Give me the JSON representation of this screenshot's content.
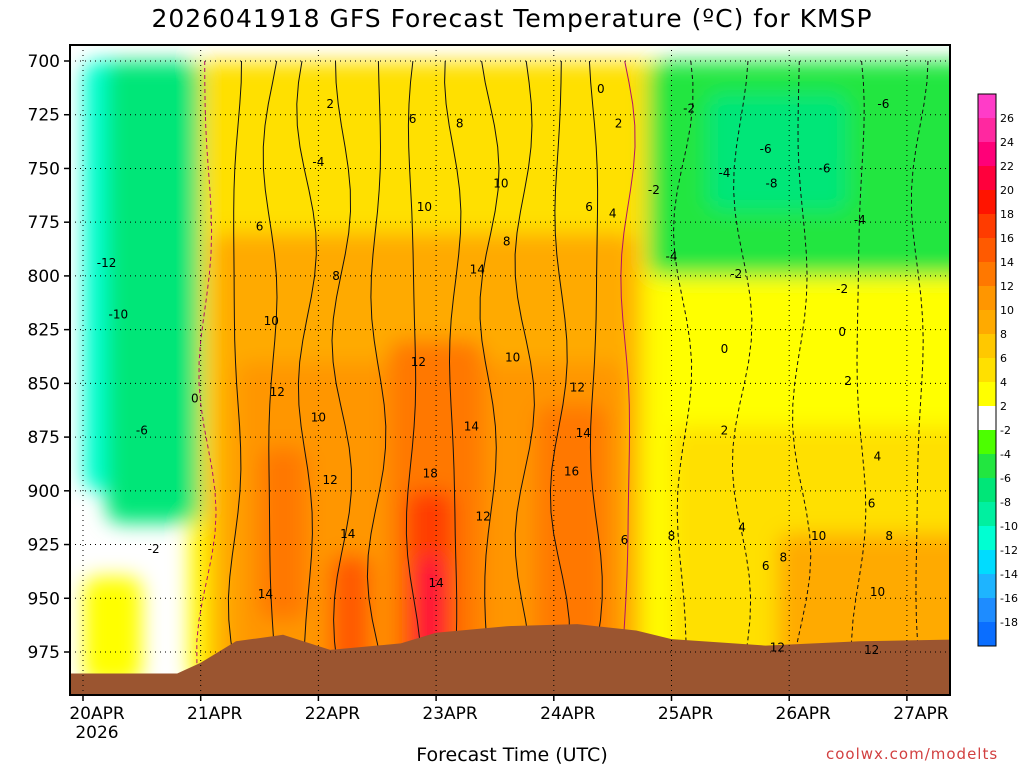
{
  "title": "2026041918 GFS Forecast Temperature (ºC) for KMSP",
  "xlabel": "Forecast Time (UTC)",
  "credit": "coolwx.com/modelts",
  "chart_data": {
    "type": "heatmap",
    "station": "KMSP",
    "model": "GFS",
    "init": "2026041918",
    "y_axis": {
      "quantity": "pressure (hPa)",
      "inverted": true,
      "range": [
        990,
        695
      ],
      "ticks": [
        700,
        725,
        750,
        775,
        800,
        825,
        850,
        875,
        900,
        925,
        950,
        975
      ]
    },
    "x_axis": {
      "ticks": [
        "20APR",
        "21APR",
        "22APR",
        "23APR",
        "24APR",
        "25APR",
        "26APR",
        "27APR"
      ],
      "first_tick_sublabel": "2026"
    },
    "grid": true,
    "colorbar": {
      "placement": "right",
      "levels": [
        -20,
        -18,
        -16,
        -14,
        -12,
        -10,
        -8,
        -6,
        -4,
        -2,
        2,
        4,
        6,
        8,
        10,
        12,
        14,
        16,
        18,
        20,
        22,
        24,
        26,
        28
      ],
      "labels": [
        26,
        24,
        22,
        20,
        18,
        16,
        14,
        12,
        10,
        8,
        6,
        4,
        2,
        -2,
        -4,
        -6,
        -8,
        -10,
        -12,
        -14,
        -16,
        -18
      ],
      "colors": [
        "#0a6eff",
        "#1e8cff",
        "#1eb4ff",
        "#00dcff",
        "#00ffd2",
        "#00f0a0",
        "#00e678",
        "#22e640",
        "#4cff00",
        "#ffffff",
        "#ffff00",
        "#ffe000",
        "#ffc800",
        "#ffaa00",
        "#ff9600",
        "#ff7800",
        "#ff5a00",
        "#ff3c00",
        "#ff1400",
        "#ff003c",
        "#ff0078",
        "#ff28a0",
        "#ff3cc8"
      ]
    },
    "ground_color": "#9b5530",
    "contour_labels": [
      {
        "text": "2",
        "t": 2.1,
        "p": 720
      },
      {
        "text": "6",
        "t": 2.8,
        "p": 727
      },
      {
        "text": "8",
        "t": 3.2,
        "p": 729
      },
      {
        "text": "0",
        "t": 4.4,
        "p": 713
      },
      {
        "text": "2",
        "t": 4.55,
        "p": 729
      },
      {
        "text": "-2",
        "t": 5.15,
        "p": 722
      },
      {
        "text": "-6",
        "t": 5.8,
        "p": 741
      },
      {
        "text": "-8",
        "t": 5.85,
        "p": 757
      },
      {
        "text": "-6",
        "t": 6.8,
        "p": 720
      },
      {
        "text": "-4",
        "t": 2.0,
        "p": 747
      },
      {
        "text": "10",
        "t": 3.55,
        "p": 757
      },
      {
        "text": "-4",
        "t": 5.45,
        "p": 752
      },
      {
        "text": "-6",
        "t": 6.3,
        "p": 750
      },
      {
        "text": "-2",
        "t": 4.85,
        "p": 760
      },
      {
        "text": "6",
        "t": 1.5,
        "p": 777
      },
      {
        "text": "10",
        "t": 2.9,
        "p": 768
      },
      {
        "text": "8",
        "t": 3.6,
        "p": 784
      },
      {
        "text": "6",
        "t": 4.3,
        "p": 768
      },
      {
        "text": "4",
        "t": 4.5,
        "p": 771
      },
      {
        "text": "-4",
        "t": 6.6,
        "p": 774
      },
      {
        "text": "-12",
        "t": 0.2,
        "p": 794
      },
      {
        "text": "8",
        "t": 2.15,
        "p": 800
      },
      {
        "text": "14",
        "t": 3.35,
        "p": 797
      },
      {
        "text": "-4",
        "t": 5.0,
        "p": 791
      },
      {
        "text": "-2",
        "t": 5.55,
        "p": 799
      },
      {
        "text": "-2",
        "t": 6.45,
        "p": 806
      },
      {
        "text": "-10",
        "t": 0.3,
        "p": 818
      },
      {
        "text": "10",
        "t": 1.6,
        "p": 821
      },
      {
        "text": "12",
        "t": 2.85,
        "p": 840
      },
      {
        "text": "10",
        "t": 3.65,
        "p": 838
      },
      {
        "text": "0",
        "t": 5.45,
        "p": 834
      },
      {
        "text": "0",
        "t": 6.45,
        "p": 826
      },
      {
        "text": "12",
        "t": 1.65,
        "p": 854
      },
      {
        "text": "0",
        "t": 0.95,
        "p": 857
      },
      {
        "text": "12",
        "t": 4.2,
        "p": 852
      },
      {
        "text": "2",
        "t": 6.5,
        "p": 849
      },
      {
        "text": "10",
        "t": 2.0,
        "p": 866
      },
      {
        "text": "14",
        "t": 3.3,
        "p": 870
      },
      {
        "text": "14",
        "t": 4.25,
        "p": 873
      },
      {
        "text": "2",
        "t": 5.45,
        "p": 872
      },
      {
        "text": "-6",
        "t": 0.5,
        "p": 872
      },
      {
        "text": "4",
        "t": 6.75,
        "p": 884
      },
      {
        "text": "18",
        "t": 2.95,
        "p": 892
      },
      {
        "text": "16",
        "t": 4.15,
        "p": 891
      },
      {
        "text": "12",
        "t": 2.1,
        "p": 895
      },
      {
        "text": "6",
        "t": 6.7,
        "p": 906
      },
      {
        "text": "12",
        "t": 3.4,
        "p": 912
      },
      {
        "text": "4",
        "t": 5.6,
        "p": 917
      },
      {
        "text": "8",
        "t": 6.85,
        "p": 921
      },
      {
        "text": "14",
        "t": 2.25,
        "p": 920
      },
      {
        "text": "6",
        "t": 4.6,
        "p": 923
      },
      {
        "text": "8",
        "t": 5.0,
        "p": 921
      },
      {
        "text": "10",
        "t": 6.25,
        "p": 921
      },
      {
        "text": "-2",
        "t": 0.6,
        "p": 927
      },
      {
        "text": "8",
        "t": 5.95,
        "p": 931
      },
      {
        "text": "6",
        "t": 5.8,
        "p": 935
      },
      {
        "text": "14",
        "t": 3.0,
        "p": 943
      },
      {
        "text": "10",
        "t": 6.75,
        "p": 947
      },
      {
        "text": "14",
        "t": 1.55,
        "p": 948
      },
      {
        "text": "12",
        "t": 5.9,
        "p": 973
      },
      {
        "text": "12",
        "t": 6.7,
        "p": 974
      }
    ]
  }
}
